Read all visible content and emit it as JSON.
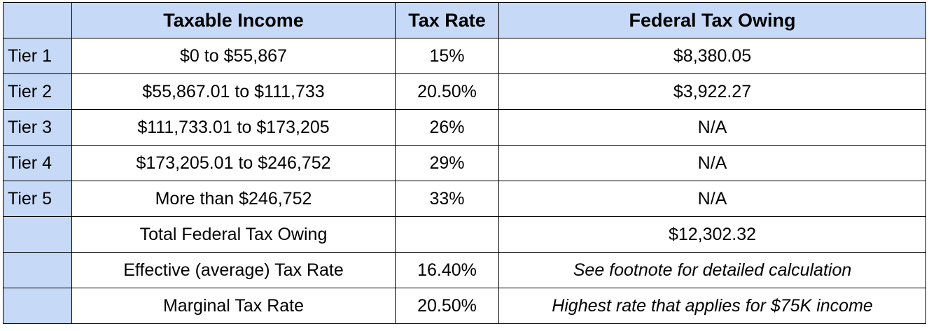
{
  "header": {
    "tier": "",
    "income": "Taxable Income",
    "rate": "Tax Rate",
    "owing": "Federal Tax Owing"
  },
  "rows": [
    {
      "tier": "Tier 1",
      "income": "$0 to $55,867",
      "rate": "15%",
      "owing": "$8,380.05"
    },
    {
      "tier": "Tier 2",
      "income": "$55,867.01 to $111,733",
      "rate": "20.50%",
      "owing": "$3,922.27"
    },
    {
      "tier": "Tier 3",
      "income": "$111,733.01 to $173,205",
      "rate": "26%",
      "owing": "N/A"
    },
    {
      "tier": "Tier 4",
      "income": "$173,205.01 to $246,752",
      "rate": "29%",
      "owing": "N/A"
    },
    {
      "tier": "Tier 5",
      "income": "More than $246,752",
      "rate": "33%",
      "owing": "N/A"
    }
  ],
  "summary": [
    {
      "tier": "",
      "label": "Total Federal Tax Owing",
      "rate": "",
      "owing": "$12,302.32"
    },
    {
      "tier": "",
      "label": "Effective (average) Tax Rate",
      "rate": "16.40%",
      "owing": "See footnote for detailed calculation"
    },
    {
      "tier": "",
      "label": "Marginal Tax Rate",
      "rate": "20.50%",
      "owing": "Highest rate that applies for $75K income"
    }
  ],
  "colors": {
    "header_bg": "#c6d9f6",
    "tier_bg": "#c6d9f6",
    "border": "#000000"
  }
}
